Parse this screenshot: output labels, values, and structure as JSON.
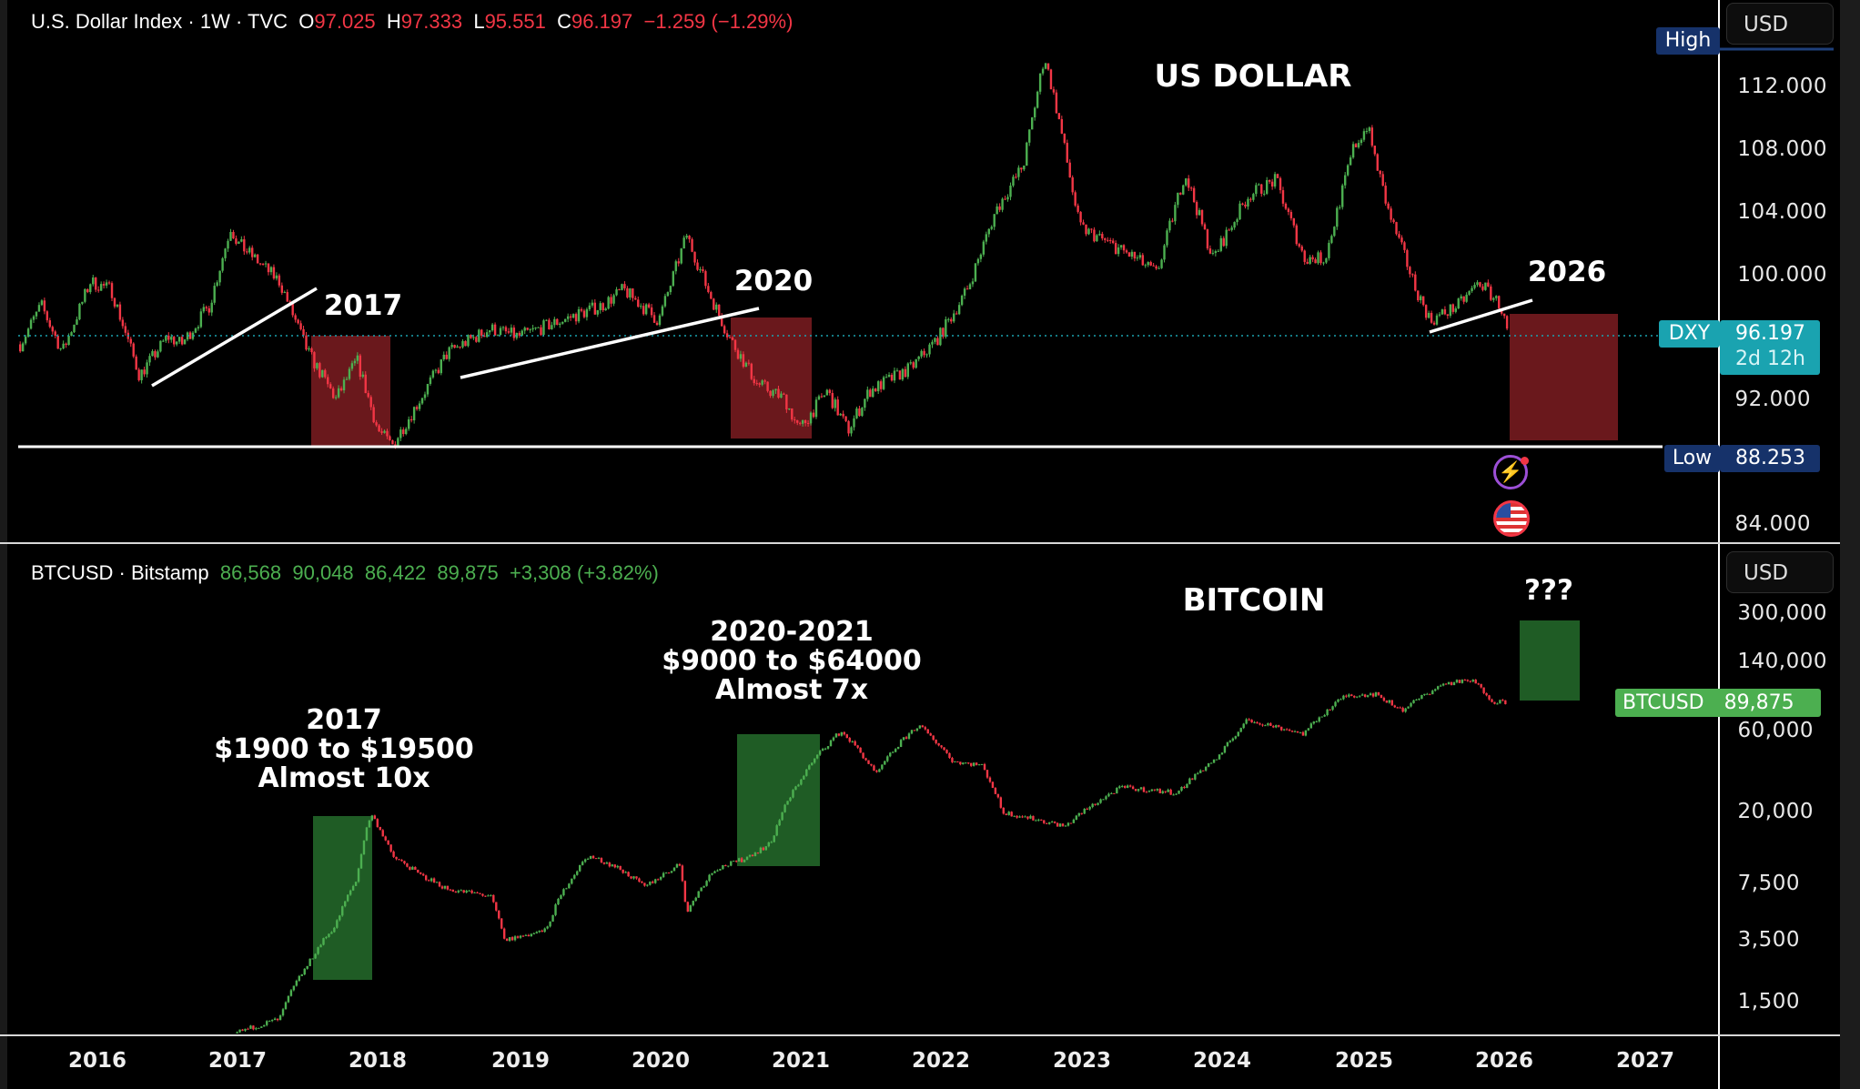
{
  "dxy_legend": {
    "symbol": "U.S. Dollar Index · 1W · TVC",
    "o_label": "O",
    "o": "97.025",
    "h_label": "H",
    "h": "97.333",
    "l_label": "L",
    "l": "95.551",
    "c_label": "C",
    "c": "96.197",
    "change": "−1.259 (−1.29%)"
  },
  "btc_legend": {
    "symbol": "BTCUSD · Bitstamp",
    "o": "86,568",
    "h": "90,048",
    "l": "86,422",
    "c": "89,875",
    "change": "+3,308 (+3.82%)"
  },
  "currency": "USD",
  "dxy_axis": {
    "ticks": [
      "112.000",
      "108.000",
      "104.000",
      "100.000",
      "92.000",
      "84.000"
    ],
    "high_label": "High",
    "price_tag_symbol": "DXY",
    "price_tag_value": "96.197",
    "countdown": "2d 12h",
    "low_label": "Low",
    "low_value": "88.253"
  },
  "btc_axis": {
    "ticks": [
      "300,000",
      "140,000",
      "60,000",
      "20,000",
      "7,500",
      "3,500",
      "1,500"
    ],
    "price_tag_symbol": "BTCUSD",
    "price_tag_value": "89,875"
  },
  "time_axis": [
    "2016",
    "2017",
    "2018",
    "2019",
    "2020",
    "2021",
    "2022",
    "2023",
    "2024",
    "2025",
    "2026",
    "2027"
  ],
  "annotations": {
    "dxy_title": "US DOLLAR",
    "dxy_2017": "2017",
    "dxy_2020": "2020",
    "dxy_2026": "2026",
    "btc_title": "BITCOIN",
    "btc_question": "???",
    "btc_2017": [
      "2017",
      "$1900 to $19500",
      "Almost 10x"
    ],
    "btc_2020": [
      "2020-2021",
      "$9000 to $64000",
      "Almost 7x"
    ]
  },
  "colors": {
    "up": "#4caf50",
    "down": "#f23645",
    "red_box": "#6a181c",
    "green_box": "#1f5c25",
    "dxy_tag": "#1aa3b0",
    "low_tag": "#16326a",
    "btc_tag": "#4caf50"
  },
  "chart_data": [
    {
      "type": "candlestick",
      "title": "U.S. Dollar Index · 1W · TVC",
      "ylim": [
        82,
        116
      ],
      "y_ticks": [
        84,
        92,
        100,
        104,
        108,
        112
      ],
      "x_ticks": [
        2016,
        2017,
        2018,
        2019,
        2020,
        2021,
        2022,
        2023,
        2024,
        2025,
        2026,
        2027
      ],
      "high": 114.8,
      "low": 88.253,
      "last": 96.197,
      "points": [
        [
          2015.45,
          95.5
        ],
        [
          2015.6,
          98
        ],
        [
          2015.75,
          95
        ],
        [
          2015.95,
          99.5
        ],
        [
          2016.1,
          99
        ],
        [
          2016.3,
          93.5
        ],
        [
          2016.5,
          96
        ],
        [
          2016.6,
          95.5
        ],
        [
          2016.8,
          98
        ],
        [
          2016.95,
          103
        ],
        [
          2017.0,
          102
        ],
        [
          2017.3,
          99.5
        ],
        [
          2017.5,
          95
        ],
        [
          2017.7,
          92
        ],
        [
          2017.85,
          94.5
        ],
        [
          2018.0,
          90
        ],
        [
          2018.1,
          89
        ],
        [
          2018.3,
          92
        ],
        [
          2018.5,
          95
        ],
        [
          2018.8,
          96.5
        ],
        [
          2019.0,
          96
        ],
        [
          2019.3,
          97
        ],
        [
          2019.6,
          98
        ],
        [
          2019.75,
          99
        ],
        [
          2020.0,
          97
        ],
        [
          2020.2,
          102.5
        ],
        [
          2020.35,
          99
        ],
        [
          2020.5,
          96
        ],
        [
          2020.7,
          93
        ],
        [
          2020.9,
          92
        ],
        [
          2021.0,
          90
        ],
        [
          2021.2,
          92.5
        ],
        [
          2021.35,
          90
        ],
        [
          2021.5,
          92.5
        ],
        [
          2021.8,
          94
        ],
        [
          2022.0,
          96
        ],
        [
          2022.2,
          99
        ],
        [
          2022.4,
          104
        ],
        [
          2022.6,
          107
        ],
        [
          2022.75,
          114
        ],
        [
          2022.85,
          110
        ],
        [
          2023.0,
          103
        ],
        [
          2023.2,
          102
        ],
        [
          2023.4,
          101
        ],
        [
          2023.55,
          100
        ],
        [
          2023.75,
          106.5
        ],
        [
          2023.95,
          101
        ],
        [
          2024.2,
          105
        ],
        [
          2024.4,
          106
        ],
        [
          2024.6,
          101
        ],
        [
          2024.75,
          101
        ],
        [
          2024.95,
          108
        ],
        [
          2025.05,
          109.5
        ],
        [
          2025.2,
          104
        ],
        [
          2025.4,
          99
        ],
        [
          2025.5,
          97
        ],
        [
          2025.7,
          98
        ],
        [
          2025.85,
          99.5
        ],
        [
          2026.0,
          98
        ],
        [
          2026.05,
          96.2
        ]
      ]
    },
    {
      "type": "candlestick",
      "title": "BTCUSD · Bitstamp",
      "scale": "log",
      "y_ticks": [
        1500,
        3500,
        7500,
        20000,
        60000,
        140000,
        300000
      ],
      "x_ticks": [
        2016,
        2017,
        2018,
        2019,
        2020,
        2021,
        2022,
        2023,
        2024,
        2025,
        2026,
        2027
      ],
      "last": 89875,
      "points": [
        [
          2016.9,
          750
        ],
        [
          2017.0,
          1000
        ],
        [
          2017.3,
          1200
        ],
        [
          2017.5,
          2500
        ],
        [
          2017.7,
          4300
        ],
        [
          2017.85,
          8000
        ],
        [
          2017.95,
          19500
        ],
        [
          2018.1,
          11000
        ],
        [
          2018.3,
          8500
        ],
        [
          2018.5,
          7000
        ],
        [
          2018.8,
          6400
        ],
        [
          2018.9,
          3500
        ],
        [
          2019.2,
          4000
        ],
        [
          2019.5,
          11000
        ],
        [
          2019.7,
          9500
        ],
        [
          2019.9,
          7200
        ],
        [
          2020.15,
          9800
        ],
        [
          2020.2,
          5000
        ],
        [
          2020.4,
          9200
        ],
        [
          2020.6,
          10500
        ],
        [
          2020.8,
          13000
        ],
        [
          2021.0,
          30000
        ],
        [
          2021.3,
          60000
        ],
        [
          2021.55,
          33000
        ],
        [
          2021.85,
          65000
        ],
        [
          2022.1,
          40000
        ],
        [
          2022.3,
          38000
        ],
        [
          2022.45,
          20000
        ],
        [
          2022.9,
          16500
        ],
        [
          2023.3,
          28000
        ],
        [
          2023.7,
          26000
        ],
        [
          2024.0,
          43000
        ],
        [
          2024.2,
          70000
        ],
        [
          2024.6,
          58000
        ],
        [
          2024.9,
          98000
        ],
        [
          2025.1,
          100000
        ],
        [
          2025.3,
          80000
        ],
        [
          2025.6,
          115000
        ],
        [
          2025.8,
          120000
        ],
        [
          2025.95,
          90000
        ],
        [
          2026.05,
          89875
        ]
      ]
    }
  ]
}
